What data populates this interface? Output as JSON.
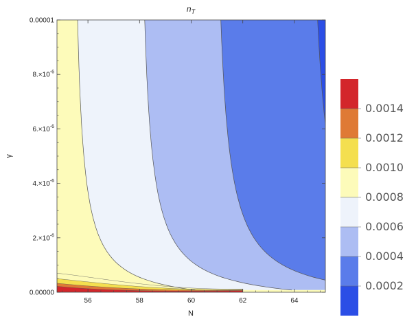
{
  "chart_data": {
    "type": "heatmap",
    "subtype": "contour",
    "title": "n_T",
    "title_main": "n",
    "title_sub": "T",
    "xlabel": "N",
    "ylabel": "γ",
    "xlim": [
      54.8,
      65.2
    ],
    "ylim": [
      0,
      1e-05
    ],
    "x_ticks": [
      56,
      58,
      60,
      62,
      64
    ],
    "x_tick_labels": [
      "56",
      "58",
      "60",
      "62",
      "64"
    ],
    "y_ticks": [
      0,
      2e-06,
      4e-06,
      6e-06,
      8e-06,
      1e-05
    ],
    "y_tick_labels": [
      {
        "base": "0.00000",
        "exp": ""
      },
      {
        "base": "2.×10",
        "exp": "-6"
      },
      {
        "base": "4.×10",
        "exp": "-6"
      },
      {
        "base": "6.×10",
        "exp": "-6"
      },
      {
        "base": "8.×10",
        "exp": "-6"
      },
      {
        "base": "0.00001",
        "exp": ""
      }
    ],
    "contour_levels": [
      0.0002,
      0.0004,
      0.0006,
      0.0008,
      0.001,
      0.0012,
      0.0014
    ],
    "contour_x_at_top": {
      "0.0008": 55.6,
      "0.0006": 58.2,
      "0.0004": 61.15,
      "0.0002": 64.9
    },
    "band_colors": [
      "#2b4ee6",
      "#5a7cea",
      "#adbdf3",
      "#eef3fb",
      "#fdfbba",
      "#f4df4f",
      "#df7a35",
      "#d3262b"
    ],
    "legend": {
      "position": "right",
      "levels": [
        0.0002,
        0.0004,
        0.0006,
        0.0008,
        0.001,
        0.0012,
        0.0014
      ],
      "labels": [
        "0.0002",
        "0.0004",
        "0.0006",
        "0.0008",
        "0.0010",
        "0.0012",
        "0.0014"
      ]
    }
  }
}
